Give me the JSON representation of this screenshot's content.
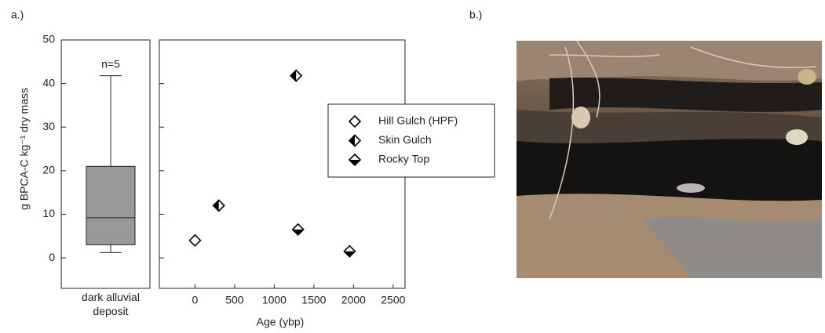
{
  "panels": {
    "a": "a.)",
    "b": "b.)"
  },
  "chart_data": [
    {
      "type": "box",
      "ylabel": "g BPCA-C kg⁻¹ dry mass",
      "annotation": "n=5",
      "categories": [
        "dark alluvial deposit"
      ],
      "boxes": [
        {
          "min": 1.2,
          "q1": 3,
          "median": 9.2,
          "q3": 21,
          "max": 41.8
        }
      ],
      "color": "#999999",
      "ylim": [
        -7,
        50
      ],
      "yticks": [
        0,
        10,
        20,
        30,
        40,
        50
      ]
    },
    {
      "type": "scatter",
      "xlabel": "Age (ybp)",
      "xlim": [
        -450,
        2650
      ],
      "xticks": [
        0,
        500,
        1000,
        1500,
        2000,
        2500
      ],
      "ylim": [
        -7,
        50
      ],
      "legend": "right",
      "series": [
        {
          "name": "Hill Gulch (HPF)",
          "color": "#000000",
          "marker": "diamond-open",
          "x": [
            0
          ],
          "values": [
            4
          ]
        },
        {
          "name": "Skin Gulch",
          "color": "#000000",
          "marker": "diamond-left",
          "x": [
            300,
            1275
          ],
          "values": [
            12,
            41.8
          ]
        },
        {
          "name": "Rocky Top",
          "color": "#000000",
          "marker": "diamond-bottom",
          "x": [
            1300,
            1950
          ],
          "values": [
            6.5,
            1.5
          ]
        }
      ]
    }
  ]
}
